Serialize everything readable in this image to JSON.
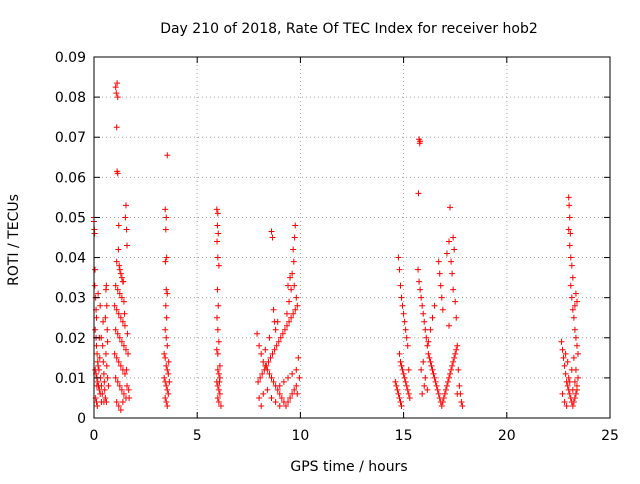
{
  "chart_data": {
    "type": "scatter",
    "title": "Day 210 of 2018, Rate Of TEC Index for receiver hob2",
    "xlabel": "GPS time / hours",
    "ylabel": "ROTI / TECUs",
    "xlim": [
      0,
      25
    ],
    "ylim": [
      0,
      0.09
    ],
    "x_ticks": [
      0,
      5,
      10,
      15,
      20,
      25
    ],
    "x_tick_labels": [
      "0",
      "5",
      "10",
      "15",
      "20",
      "25"
    ],
    "y_ticks": [
      0,
      0.01,
      0.02,
      0.03,
      0.04,
      0.05,
      0.06,
      0.07,
      0.08,
      0.09
    ],
    "y_tick_labels": [
      "0",
      "0.01",
      "0.02",
      "0.03",
      "0.04",
      "0.05",
      "0.06",
      "0.07",
      "0.08",
      "0.09"
    ],
    "grid": true,
    "marker": "+",
    "color": "#ff0000",
    "points": [
      [
        0.0,
        0.05
      ],
      [
        0.0,
        0.049
      ],
      [
        0.02,
        0.047
      ],
      [
        0.03,
        0.046
      ],
      [
        0.05,
        0.037
      ],
      [
        0.04,
        0.033
      ],
      [
        0.08,
        0.03
      ],
      [
        0.1,
        0.027
      ],
      [
        0.12,
        0.025
      ],
      [
        0.06,
        0.022
      ],
      [
        0.1,
        0.02
      ],
      [
        0.12,
        0.018
      ],
      [
        0.15,
        0.016
      ],
      [
        0.18,
        0.014
      ],
      [
        0.2,
        0.013
      ],
      [
        0.06,
        0.012
      ],
      [
        0.1,
        0.011
      ],
      [
        0.14,
        0.01
      ],
      [
        0.18,
        0.009
      ],
      [
        0.22,
        0.008
      ],
      [
        0.26,
        0.007
      ],
      [
        0.3,
        0.006
      ],
      [
        0.08,
        0.005
      ],
      [
        0.12,
        0.004
      ],
      [
        0.16,
        0.003
      ],
      [
        0.24,
        0.012
      ],
      [
        0.28,
        0.015
      ],
      [
        0.32,
        0.01
      ],
      [
        0.36,
        0.008
      ],
      [
        0.4,
        0.006
      ],
      [
        0.35,
        0.02
      ],
      [
        0.42,
        0.018
      ],
      [
        0.45,
        0.014
      ],
      [
        0.48,
        0.011
      ],
      [
        0.5,
        0.009
      ],
      [
        0.52,
        0.007
      ],
      [
        0.55,
        0.005
      ],
      [
        0.55,
        0.025
      ],
      [
        0.58,
        0.032
      ],
      [
        0.6,
        0.033
      ],
      [
        0.62,
        0.028
      ],
      [
        0.64,
        0.022
      ],
      [
        0.66,
        0.019
      ],
      [
        0.58,
        0.016
      ],
      [
        0.62,
        0.013
      ],
      [
        0.66,
        0.01
      ],
      [
        0.7,
        0.008
      ],
      [
        0.44,
        0.024
      ],
      [
        0.3,
        0.028
      ],
      [
        0.2,
        0.031
      ],
      [
        0.36,
        0.004
      ],
      [
        0.48,
        0.004
      ],
      [
        0.6,
        0.004
      ],
      [
        0.26,
        0.02
      ],
      [
        0.14,
        0.008
      ],
      [
        1.05,
        0.0825
      ],
      [
        1.12,
        0.0835
      ],
      [
        1.08,
        0.081
      ],
      [
        1.15,
        0.08
      ],
      [
        1.1,
        0.0725
      ],
      [
        1.12,
        0.0615
      ],
      [
        1.15,
        0.061
      ],
      [
        1.2,
        0.048
      ],
      [
        1.18,
        0.042
      ],
      [
        1.1,
        0.039
      ],
      [
        1.22,
        0.038
      ],
      [
        1.25,
        0.037
      ],
      [
        1.3,
        0.036
      ],
      [
        1.35,
        0.035
      ],
      [
        1.4,
        0.034
      ],
      [
        1.05,
        0.033
      ],
      [
        1.15,
        0.032
      ],
      [
        1.25,
        0.031
      ],
      [
        1.35,
        0.03
      ],
      [
        1.45,
        0.029
      ],
      [
        1.0,
        0.028
      ],
      [
        1.1,
        0.027
      ],
      [
        1.2,
        0.026
      ],
      [
        1.3,
        0.025
      ],
      [
        1.4,
        0.024
      ],
      [
        1.5,
        0.023
      ],
      [
        1.05,
        0.022
      ],
      [
        1.15,
        0.021
      ],
      [
        1.25,
        0.02
      ],
      [
        1.35,
        0.019
      ],
      [
        1.45,
        0.018
      ],
      [
        1.55,
        0.017
      ],
      [
        1.0,
        0.016
      ],
      [
        1.1,
        0.015
      ],
      [
        1.2,
        0.014
      ],
      [
        1.3,
        0.013
      ],
      [
        1.4,
        0.012
      ],
      [
        1.5,
        0.011
      ],
      [
        1.05,
        0.01
      ],
      [
        1.15,
        0.009
      ],
      [
        1.25,
        0.008
      ],
      [
        1.35,
        0.007
      ],
      [
        1.45,
        0.006
      ],
      [
        1.55,
        0.005
      ],
      [
        1.1,
        0.004
      ],
      [
        1.2,
        0.003
      ],
      [
        1.3,
        0.002
      ],
      [
        1.4,
        0.004
      ],
      [
        1.6,
        0.008
      ],
      [
        1.58,
        0.012
      ],
      [
        1.52,
        0.05
      ],
      [
        1.55,
        0.053
      ],
      [
        1.58,
        0.047
      ],
      [
        1.6,
        0.043
      ],
      [
        1.62,
        0.021
      ],
      [
        1.65,
        0.016
      ],
      [
        1.68,
        0.007
      ],
      [
        1.7,
        0.005
      ],
      [
        1.48,
        0.026
      ],
      [
        1.42,
        0.034
      ],
      [
        3.45,
        0.052
      ],
      [
        3.5,
        0.05
      ],
      [
        3.48,
        0.047
      ],
      [
        3.52,
        0.04
      ],
      [
        3.46,
        0.039
      ],
      [
        3.55,
        0.0655
      ],
      [
        3.5,
        0.032
      ],
      [
        3.55,
        0.031
      ],
      [
        3.48,
        0.028
      ],
      [
        3.52,
        0.025
      ],
      [
        3.45,
        0.022
      ],
      [
        3.5,
        0.02
      ],
      [
        3.55,
        0.018
      ],
      [
        3.4,
        0.016
      ],
      [
        3.45,
        0.015
      ],
      [
        3.5,
        0.013
      ],
      [
        3.55,
        0.012
      ],
      [
        3.6,
        0.011
      ],
      [
        3.4,
        0.01
      ],
      [
        3.45,
        0.009
      ],
      [
        3.5,
        0.008
      ],
      [
        3.55,
        0.007
      ],
      [
        3.6,
        0.006
      ],
      [
        3.45,
        0.005
      ],
      [
        3.5,
        0.004
      ],
      [
        3.55,
        0.003
      ],
      [
        3.65,
        0.009
      ],
      [
        3.62,
        0.014
      ],
      [
        5.95,
        0.052
      ],
      [
        6.0,
        0.051
      ],
      [
        5.98,
        0.048
      ],
      [
        6.02,
        0.046
      ],
      [
        5.96,
        0.044
      ],
      [
        6.0,
        0.04
      ],
      [
        6.05,
        0.038
      ],
      [
        5.98,
        0.032
      ],
      [
        6.02,
        0.028
      ],
      [
        5.96,
        0.025
      ],
      [
        6.0,
        0.022
      ],
      [
        6.05,
        0.019
      ],
      [
        5.95,
        0.017
      ],
      [
        6.0,
        0.016
      ],
      [
        6.1,
        0.013
      ],
      [
        6.0,
        0.012
      ],
      [
        6.05,
        0.011
      ],
      [
        6.1,
        0.01
      ],
      [
        5.95,
        0.009
      ],
      [
        6.0,
        0.008
      ],
      [
        6.05,
        0.007
      ],
      [
        6.1,
        0.006
      ],
      [
        6.0,
        0.005
      ],
      [
        6.05,
        0.004
      ],
      [
        6.15,
        0.003
      ],
      [
        6.08,
        0.009
      ],
      [
        7.9,
        0.021
      ],
      [
        8.0,
        0.018
      ],
      [
        8.1,
        0.016
      ],
      [
        8.2,
        0.014
      ],
      [
        8.3,
        0.013
      ],
      [
        8.4,
        0.012
      ],
      [
        8.5,
        0.011
      ],
      [
        8.6,
        0.01
      ],
      [
        8.7,
        0.009
      ],
      [
        8.8,
        0.008
      ],
      [
        8.9,
        0.007
      ],
      [
        9.0,
        0.006
      ],
      [
        9.1,
        0.005
      ],
      [
        9.2,
        0.004
      ],
      [
        9.3,
        0.003
      ],
      [
        9.4,
        0.004
      ],
      [
        9.5,
        0.005
      ],
      [
        9.6,
        0.006
      ],
      [
        9.7,
        0.007
      ],
      [
        9.8,
        0.008
      ],
      [
        7.95,
        0.009
      ],
      [
        8.05,
        0.01
      ],
      [
        8.15,
        0.011
      ],
      [
        8.25,
        0.012
      ],
      [
        8.35,
        0.013
      ],
      [
        8.45,
        0.014
      ],
      [
        8.55,
        0.015
      ],
      [
        8.65,
        0.016
      ],
      [
        8.75,
        0.017
      ],
      [
        8.85,
        0.018
      ],
      [
        8.95,
        0.019
      ],
      [
        9.05,
        0.02
      ],
      [
        9.15,
        0.021
      ],
      [
        9.25,
        0.022
      ],
      [
        9.35,
        0.023
      ],
      [
        9.45,
        0.024
      ],
      [
        9.55,
        0.025
      ],
      [
        9.65,
        0.026
      ],
      [
        9.75,
        0.027
      ],
      [
        9.85,
        0.028
      ],
      [
        8.0,
        0.005
      ],
      [
        8.2,
        0.006
      ],
      [
        8.4,
        0.007
      ],
      [
        8.6,
        0.005
      ],
      [
        8.8,
        0.004
      ],
      [
        9.0,
        0.008
      ],
      [
        9.2,
        0.009
      ],
      [
        9.4,
        0.01
      ],
      [
        9.6,
        0.011
      ],
      [
        9.8,
        0.012
      ],
      [
        8.6,
        0.0465
      ],
      [
        8.65,
        0.045
      ],
      [
        8.7,
        0.027
      ],
      [
        8.75,
        0.024
      ],
      [
        8.8,
        0.022
      ],
      [
        9.4,
        0.033
      ],
      [
        9.5,
        0.035
      ],
      [
        9.6,
        0.036
      ],
      [
        9.7,
        0.033
      ],
      [
        9.8,
        0.03
      ],
      [
        9.75,
        0.048
      ],
      [
        9.72,
        0.045
      ],
      [
        9.65,
        0.042
      ],
      [
        9.68,
        0.039
      ],
      [
        9.55,
        0.032
      ],
      [
        9.45,
        0.029
      ],
      [
        9.35,
        0.026
      ],
      [
        8.9,
        0.024
      ],
      [
        8.5,
        0.02
      ],
      [
        8.3,
        0.017
      ],
      [
        9.9,
        0.015
      ],
      [
        9.95,
        0.01
      ],
      [
        9.85,
        0.006
      ],
      [
        8.1,
        0.003
      ],
      [
        9.0,
        0.003
      ],
      [
        14.75,
        0.04
      ],
      [
        14.8,
        0.037
      ],
      [
        14.85,
        0.033
      ],
      [
        14.9,
        0.03
      ],
      [
        14.95,
        0.028
      ],
      [
        15.0,
        0.026
      ],
      [
        15.05,
        0.024
      ],
      [
        15.1,
        0.022
      ],
      [
        15.15,
        0.02
      ],
      [
        15.2,
        0.018
      ],
      [
        14.8,
        0.016
      ],
      [
        14.85,
        0.014
      ],
      [
        14.9,
        0.013
      ],
      [
        14.95,
        0.012
      ],
      [
        15.0,
        0.011
      ],
      [
        15.05,
        0.01
      ],
      [
        15.1,
        0.009
      ],
      [
        15.15,
        0.008
      ],
      [
        15.2,
        0.007
      ],
      [
        15.25,
        0.006
      ],
      [
        14.6,
        0.009
      ],
      [
        14.65,
        0.008
      ],
      [
        14.7,
        0.007
      ],
      [
        14.75,
        0.006
      ],
      [
        14.8,
        0.005
      ],
      [
        14.85,
        0.004
      ],
      [
        14.9,
        0.003
      ],
      [
        15.3,
        0.005
      ],
      [
        15.25,
        0.012
      ],
      [
        15.75,
        0.0695
      ],
      [
        15.8,
        0.069
      ],
      [
        15.78,
        0.0685
      ],
      [
        15.72,
        0.056
      ],
      [
        15.7,
        0.037
      ],
      [
        15.75,
        0.034
      ],
      [
        15.8,
        0.032
      ],
      [
        15.85,
        0.03
      ],
      [
        15.9,
        0.028
      ],
      [
        15.95,
        0.026
      ],
      [
        16.0,
        0.024
      ],
      [
        16.05,
        0.022
      ],
      [
        16.1,
        0.02
      ],
      [
        16.15,
        0.018
      ],
      [
        16.2,
        0.016
      ],
      [
        16.25,
        0.015
      ],
      [
        16.3,
        0.014
      ],
      [
        16.35,
        0.013
      ],
      [
        16.4,
        0.012
      ],
      [
        16.45,
        0.011
      ],
      [
        16.5,
        0.01
      ],
      [
        16.55,
        0.009
      ],
      [
        16.6,
        0.008
      ],
      [
        16.65,
        0.007
      ],
      [
        16.7,
        0.006
      ],
      [
        16.75,
        0.005
      ],
      [
        16.8,
        0.004
      ],
      [
        16.85,
        0.003
      ],
      [
        16.9,
        0.004
      ],
      [
        16.95,
        0.005
      ],
      [
        17.0,
        0.006
      ],
      [
        17.05,
        0.007
      ],
      [
        17.1,
        0.008
      ],
      [
        17.15,
        0.009
      ],
      [
        17.2,
        0.01
      ],
      [
        17.25,
        0.011
      ],
      [
        17.3,
        0.012
      ],
      [
        17.35,
        0.013
      ],
      [
        17.4,
        0.014
      ],
      [
        17.45,
        0.015
      ],
      [
        17.5,
        0.016
      ],
      [
        17.55,
        0.017
      ],
      [
        17.6,
        0.018
      ],
      [
        17.65,
        0.012
      ],
      [
        17.7,
        0.008
      ],
      [
        17.75,
        0.006
      ],
      [
        17.8,
        0.004
      ],
      [
        17.85,
        0.003
      ],
      [
        15.9,
        0.006
      ],
      [
        16.0,
        0.008
      ],
      [
        16.7,
        0.039
      ],
      [
        16.75,
        0.036
      ],
      [
        16.8,
        0.033
      ],
      [
        16.85,
        0.03
      ],
      [
        16.9,
        0.027
      ],
      [
        17.1,
        0.041
      ],
      [
        17.2,
        0.044
      ],
      [
        17.25,
        0.0525
      ],
      [
        17.4,
        0.045
      ],
      [
        17.45,
        0.042
      ],
      [
        17.3,
        0.039
      ],
      [
        17.35,
        0.036
      ],
      [
        17.4,
        0.032
      ],
      [
        17.5,
        0.029
      ],
      [
        17.55,
        0.025
      ],
      [
        17.2,
        0.023
      ],
      [
        16.5,
        0.028
      ],
      [
        16.4,
        0.025
      ],
      [
        16.3,
        0.022
      ],
      [
        16.2,
        0.019
      ],
      [
        15.85,
        0.012
      ],
      [
        15.95,
        0.014
      ],
      [
        16.05,
        0.01
      ],
      [
        16.15,
        0.007
      ],
      [
        17.6,
        0.006
      ],
      [
        22.65,
        0.019
      ],
      [
        22.7,
        0.017
      ],
      [
        22.75,
        0.015
      ],
      [
        22.8,
        0.013
      ],
      [
        22.85,
        0.011
      ],
      [
        22.9,
        0.009
      ],
      [
        22.95,
        0.008
      ],
      [
        23.0,
        0.007
      ],
      [
        23.05,
        0.006
      ],
      [
        23.1,
        0.005
      ],
      [
        23.15,
        0.004
      ],
      [
        23.2,
        0.003
      ],
      [
        23.25,
        0.004
      ],
      [
        23.3,
        0.005
      ],
      [
        23.35,
        0.006
      ],
      [
        23.4,
        0.007
      ],
      [
        22.7,
        0.006
      ],
      [
        22.8,
        0.004
      ],
      [
        22.9,
        0.003
      ],
      [
        23.0,
        0.01
      ],
      [
        23.0,
        0.055
      ],
      [
        23.02,
        0.053
      ],
      [
        23.05,
        0.05
      ],
      [
        23.0,
        0.047
      ],
      [
        23.08,
        0.046
      ],
      [
        23.05,
        0.043
      ],
      [
        23.1,
        0.04
      ],
      [
        23.15,
        0.038
      ],
      [
        23.2,
        0.035
      ],
      [
        23.1,
        0.033
      ],
      [
        23.15,
        0.03
      ],
      [
        23.2,
        0.027
      ],
      [
        23.25,
        0.025
      ],
      [
        23.3,
        0.022
      ],
      [
        23.35,
        0.02
      ],
      [
        23.4,
        0.018
      ],
      [
        23.45,
        0.016
      ],
      [
        23.4,
        0.029
      ],
      [
        23.35,
        0.031
      ],
      [
        23.3,
        0.028
      ],
      [
        23.25,
        0.015
      ],
      [
        23.15,
        0.012
      ],
      [
        23.45,
        0.01
      ],
      [
        23.4,
        0.008
      ],
      [
        23.35,
        0.012
      ],
      [
        22.85,
        0.016
      ],
      [
        22.95,
        0.014
      ],
      [
        23.05,
        0.009
      ],
      [
        23.2,
        0.007
      ],
      [
        23.3,
        0.009
      ]
    ]
  }
}
